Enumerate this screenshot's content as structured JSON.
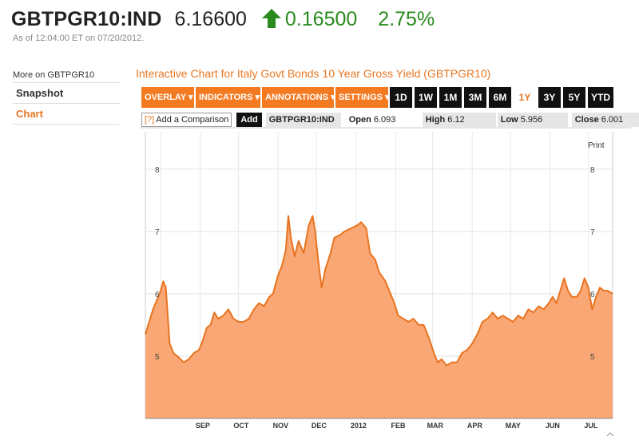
{
  "header": {
    "ticker": "GBTPGR10:IND",
    "price": "6.16600",
    "change": "0.16500",
    "change_pct": "2.75%",
    "direction_icon": "up-arrow-icon",
    "as_of": "As of 12:04:00 ET on 07/20/2012.",
    "up_color": "#2a8a1e"
  },
  "sidebar": {
    "title": "More on GBTPGR10",
    "items": [
      {
        "label": "Snapshot"
      },
      {
        "label": "Chart"
      }
    ]
  },
  "chart_panel": {
    "title": "Interactive Chart for Italy Govt Bonds 10 Year Gross Yield (GBTPGR10)",
    "menus": [
      {
        "label": "OVERLAY ▾"
      },
      {
        "label": "INDICATORS ▾"
      },
      {
        "label": "ANNOTATIONS ▾"
      },
      {
        "label": "SETTINGS ▾"
      }
    ],
    "ranges": [
      {
        "label": "1D"
      },
      {
        "label": "1W"
      },
      {
        "label": "1M"
      },
      {
        "label": "3M"
      },
      {
        "label": "6M"
      },
      {
        "label": "1Y"
      },
      {
        "label": "3Y"
      },
      {
        "label": "5Y"
      },
      {
        "label": "YTD"
      }
    ],
    "active_range": "1Y",
    "compare": {
      "help": "[?]",
      "label": "Add a Comparison",
      "add": "Add"
    },
    "quote": {
      "symbol": "GBTPGR10:IND",
      "open_label": "Open",
      "open": "6.093",
      "high_label": "High",
      "high": "6.12",
      "low_label": "Low",
      "low": "5.956",
      "close_label": "Close",
      "close": "6.001"
    },
    "print_label": "Print",
    "accent_color": "#e87722"
  },
  "chart_data": {
    "type": "area",
    "title": "",
    "xlabel": "",
    "ylabel": "",
    "ylim": [
      4.0,
      8.6
    ],
    "yticks": [
      "5",
      "6",
      "7",
      "8"
    ],
    "xticks": [
      "SEP",
      "OCT",
      "NOV",
      "DEC",
      "2012",
      "FEB",
      "MAR",
      "APR",
      "MAY",
      "JUN",
      "JUL"
    ],
    "grid": true,
    "series": [
      {
        "fill": "#f9a875",
        "stroke": "#e8731f",
        "points": [
          [
            "2011-07-20",
            5.35
          ],
          [
            "2011-07-23",
            5.55
          ],
          [
            "2011-07-26",
            5.75
          ],
          [
            "2011-07-29",
            5.9
          ],
          [
            "2011-08-01",
            6.05
          ],
          [
            "2011-08-03",
            6.2
          ],
          [
            "2011-08-05",
            6.1
          ],
          [
            "2011-08-08",
            5.2
          ],
          [
            "2011-08-11",
            5.05
          ],
          [
            "2011-08-15",
            4.98
          ],
          [
            "2011-08-19",
            4.9
          ],
          [
            "2011-08-23",
            4.95
          ],
          [
            "2011-08-27",
            5.05
          ],
          [
            "2011-08-31",
            5.1
          ],
          [
            "2011-09-03",
            5.25
          ],
          [
            "2011-09-06",
            5.45
          ],
          [
            "2011-09-09",
            5.5
          ],
          [
            "2011-09-12",
            5.7
          ],
          [
            "2011-09-15",
            5.6
          ],
          [
            "2011-09-19",
            5.65
          ],
          [
            "2011-09-23",
            5.75
          ],
          [
            "2011-09-27",
            5.6
          ],
          [
            "2011-10-01",
            5.55
          ],
          [
            "2011-10-05",
            5.55
          ],
          [
            "2011-10-09",
            5.6
          ],
          [
            "2011-10-13",
            5.75
          ],
          [
            "2011-10-17",
            5.85
          ],
          [
            "2011-10-21",
            5.8
          ],
          [
            "2011-10-25",
            5.95
          ],
          [
            "2011-10-28",
            6.0
          ],
          [
            "2011-11-01",
            6.3
          ],
          [
            "2011-11-04",
            6.45
          ],
          [
            "2011-11-07",
            6.7
          ],
          [
            "2011-11-09",
            7.25
          ],
          [
            "2011-11-11",
            6.9
          ],
          [
            "2011-11-14",
            6.6
          ],
          [
            "2011-11-17",
            6.85
          ],
          [
            "2011-11-21",
            6.65
          ],
          [
            "2011-11-25",
            7.1
          ],
          [
            "2011-11-28",
            7.25
          ],
          [
            "2011-11-30",
            7.0
          ],
          [
            "2011-12-02",
            6.6
          ],
          [
            "2011-12-05",
            6.1
          ],
          [
            "2011-12-08",
            6.4
          ],
          [
            "2011-12-12",
            6.65
          ],
          [
            "2011-12-15",
            6.9
          ],
          [
            "2011-12-20",
            6.95
          ],
          [
            "2011-12-23",
            7.0
          ],
          [
            "2011-12-28",
            7.05
          ],
          [
            "2012-01-02",
            7.1
          ],
          [
            "2012-01-05",
            7.15
          ],
          [
            "2012-01-09",
            7.05
          ],
          [
            "2012-01-12",
            6.65
          ],
          [
            "2012-01-16",
            6.55
          ],
          [
            "2012-01-19",
            6.35
          ],
          [
            "2012-01-24",
            6.2
          ],
          [
            "2012-01-27",
            6.05
          ],
          [
            "2012-01-31",
            5.85
          ],
          [
            "2012-02-03",
            5.65
          ],
          [
            "2012-02-07",
            5.6
          ],
          [
            "2012-02-11",
            5.55
          ],
          [
            "2012-02-15",
            5.6
          ],
          [
            "2012-02-19",
            5.5
          ],
          [
            "2012-02-23",
            5.5
          ],
          [
            "2012-02-27",
            5.3
          ],
          [
            "2012-03-02",
            5.05
          ],
          [
            "2012-03-05",
            4.9
          ],
          [
            "2012-03-08",
            4.95
          ],
          [
            "2012-03-12",
            4.85
          ],
          [
            "2012-03-16",
            4.9
          ],
          [
            "2012-03-20",
            4.9
          ],
          [
            "2012-03-24",
            5.05
          ],
          [
            "2012-03-28",
            5.1
          ],
          [
            "2012-04-01",
            5.2
          ],
          [
            "2012-04-05",
            5.35
          ],
          [
            "2012-04-09",
            5.55
          ],
          [
            "2012-04-13",
            5.6
          ],
          [
            "2012-04-17",
            5.7
          ],
          [
            "2012-04-21",
            5.6
          ],
          [
            "2012-04-25",
            5.65
          ],
          [
            "2012-04-29",
            5.6
          ],
          [
            "2012-05-03",
            5.55
          ],
          [
            "2012-05-07",
            5.65
          ],
          [
            "2012-05-11",
            5.6
          ],
          [
            "2012-05-15",
            5.75
          ],
          [
            "2012-05-19",
            5.7
          ],
          [
            "2012-05-23",
            5.8
          ],
          [
            "2012-05-27",
            5.75
          ],
          [
            "2012-05-31",
            5.85
          ],
          [
            "2012-06-03",
            5.95
          ],
          [
            "2012-06-06",
            5.85
          ],
          [
            "2012-06-09",
            6.05
          ],
          [
            "2012-06-12",
            6.25
          ],
          [
            "2012-06-15",
            6.05
          ],
          [
            "2012-06-18",
            5.95
          ],
          [
            "2012-06-22",
            5.95
          ],
          [
            "2012-06-25",
            6.05
          ],
          [
            "2012-06-28",
            6.25
          ],
          [
            "2012-07-01",
            6.1
          ],
          [
            "2012-07-04",
            5.75
          ],
          [
            "2012-07-07",
            5.95
          ],
          [
            "2012-07-10",
            6.1
          ],
          [
            "2012-07-13",
            6.05
          ],
          [
            "2012-07-16",
            6.05
          ],
          [
            "2012-07-20",
            6.0
          ]
        ]
      }
    ]
  }
}
